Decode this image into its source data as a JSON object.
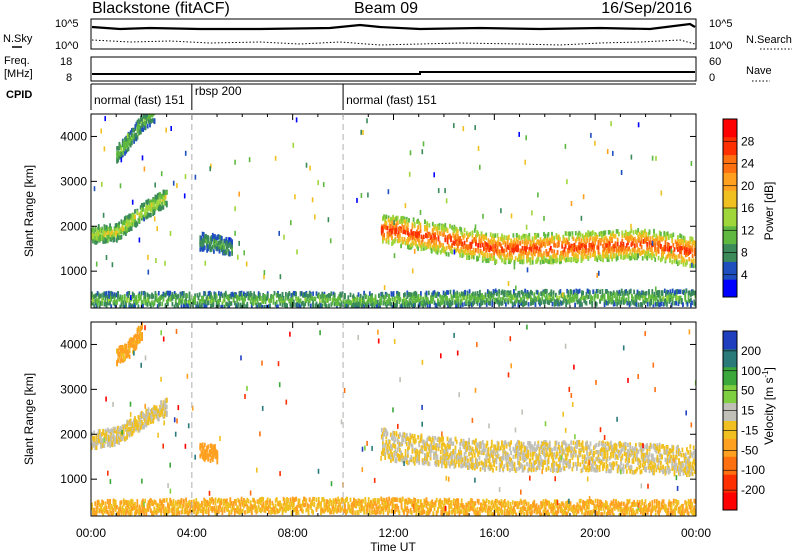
{
  "header": {
    "station": "Blackstone (fitACF)",
    "beam": "Beam 09",
    "date": "16/Sep/2016"
  },
  "top_panels": {
    "nsky_label": "N.Sky",
    "nsearch_label": "N.Search",
    "nsky_ticks": [
      "10^5",
      "10^0"
    ],
    "nsearch_ticks": [
      "10^5",
      "10^0"
    ],
    "freq_label_1": "Freq.",
    "freq_label_2": "[MHz]",
    "freq_ticks": [
      "18",
      "8"
    ],
    "nave_label": "Nave",
    "nave_ticks": [
      "60",
      "0"
    ],
    "cpid_label": "CPID",
    "cpid_segments": [
      {
        "label": "normal (fast) 151",
        "start_h": 0,
        "end_h": 4
      },
      {
        "label": "rbsp 200",
        "start_h": 4,
        "end_h": 10
      },
      {
        "label": "normal (fast) 151",
        "start_h": 10,
        "end_h": 24
      }
    ]
  },
  "colorbars": {
    "power": {
      "label": "Power [dB]",
      "ticks": [
        "28",
        "24",
        "20",
        "16",
        "12",
        "8",
        "4"
      ],
      "colors": [
        "#0000ff",
        "#1f4fbf",
        "#3a8a5a",
        "#5fb83f",
        "#9fd63a",
        "#f0c020",
        "#ffa020",
        "#ff7010",
        "#ff3000",
        "#ff0000"
      ]
    },
    "velocity": {
      "label": "Velocity [m s",
      "label_sup": "-1",
      "label_end": "]",
      "ticks": [
        "200",
        "100",
        "50",
        "15",
        "-15",
        "-50",
        "-100",
        "-200"
      ],
      "colors": [
        "#1f3fbf",
        "#2a7a7a",
        "#3aa83a",
        "#7fd040",
        "#c0c0b8",
        "#f0c020",
        "#ffa020",
        "#ff7010",
        "#ff3000",
        "#ff0000"
      ]
    }
  },
  "chart_data": [
    {
      "type": "heatmap",
      "title": "",
      "ylabel": "Slant Range [km]",
      "ylim": [
        180,
        4500
      ],
      "y_ticks": [
        1000,
        2000,
        3000,
        4000
      ],
      "xlim_hours": [
        0,
        24
      ],
      "x_ticks": [
        "00:00",
        "04:00",
        "08:00",
        "12:00",
        "16:00",
        "20:00",
        "00:00"
      ],
      "quantity": "Power [dB]",
      "regions": [
        {
          "name": "morning_band_low",
          "points": [
            [
              0,
              1800
            ],
            [
              1,
              1850
            ],
            [
              2,
              2300
            ],
            [
              3,
              2650
            ]
          ],
          "value": 14
        },
        {
          "name": "morning_band_high",
          "points": [
            [
              1,
              3600
            ],
            [
              1.5,
              3900
            ],
            [
              2,
              4300
            ],
            [
              2.5,
              4500
            ]
          ],
          "value": 10
        },
        {
          "name": "rbsp_patch",
          "points": [
            [
              4.3,
              1650
            ],
            [
              5,
              1600
            ],
            [
              5.6,
              1500
            ]
          ],
          "value": 8
        },
        {
          "name": "afternoon_band",
          "points": [
            [
              11.5,
              1900
            ],
            [
              12,
              1900
            ],
            [
              14,
              1700
            ],
            [
              16,
              1500
            ],
            [
              18,
              1500
            ],
            [
              20,
              1550
            ],
            [
              22,
              1600
            ],
            [
              24,
              1400
            ]
          ],
          "value": 24
        },
        {
          "name": "ground_scatter_low",
          "points": [
            [
              0,
              350
            ],
            [
              6,
              350
            ],
            [
              12,
              350
            ],
            [
              16,
              400
            ],
            [
              20,
              400
            ],
            [
              24,
              400
            ]
          ],
          "value": 10
        }
      ]
    },
    {
      "type": "heatmap",
      "title": "",
      "ylabel": "Slant Range [km]",
      "ylim": [
        180,
        4500
      ],
      "y_ticks": [
        1000,
        2000,
        3000,
        4000
      ],
      "xlim_hours": [
        0,
        24
      ],
      "x_ticks": [
        "00:00",
        "04:00",
        "08:00",
        "12:00",
        "16:00",
        "20:00",
        "00:00"
      ],
      "xlabel": "Time UT",
      "quantity": "Velocity [m s-1]",
      "regions": [
        {
          "name": "morning_band_low",
          "points": [
            [
              0,
              1850
            ],
            [
              1,
              1950
            ],
            [
              2,
              2300
            ],
            [
              3,
              2600
            ]
          ],
          "value": 0
        },
        {
          "name": "morning_band_high",
          "points": [
            [
              1,
              3700
            ],
            [
              1.5,
              3900
            ],
            [
              2,
              4300
            ]
          ],
          "value": -50
        },
        {
          "name": "rbsp_patch",
          "points": [
            [
              4.3,
              1600
            ],
            [
              5,
              1550
            ]
          ],
          "value": -60
        },
        {
          "name": "afternoon_band",
          "points": [
            [
              11.5,
              1800
            ],
            [
              12,
              1700
            ],
            [
              16,
              1500
            ],
            [
              20,
              1500
            ],
            [
              24,
              1400
            ]
          ],
          "value": 0
        },
        {
          "name": "ground_scatter_low",
          "points": [
            [
              0,
              350
            ],
            [
              6,
              400
            ],
            [
              12,
              400
            ],
            [
              16,
              350
            ],
            [
              24,
              350
            ]
          ],
          "value": -40
        }
      ]
    }
  ]
}
